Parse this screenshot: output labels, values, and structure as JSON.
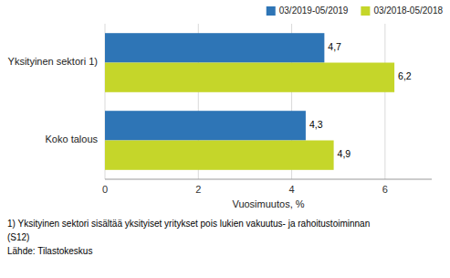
{
  "chart_data": {
    "type": "bar",
    "orientation": "horizontal",
    "categories": [
      "Koko talous",
      "Yksityinen sektori 1)"
    ],
    "series": [
      {
        "name": "03/2019-05/2019",
        "color": "#2E75B6",
        "values": [
          4.3,
          4.7
        ],
        "value_labels": [
          "4,3",
          "4,7"
        ]
      },
      {
        "name": "03/2018-05/2018",
        "color": "#C5D62A",
        "values": [
          4.9,
          6.2
        ],
        "value_labels": [
          "4,9",
          "6,2"
        ]
      }
    ],
    "xlabel": "Vuosimuutos, %",
    "xlim": [
      0,
      7
    ],
    "xticks": [
      0,
      2,
      4,
      6
    ],
    "grid": true,
    "legend": "upper right",
    "data_labels": true,
    "annotations": [
      "1) Yksityinen sektori sisältää yksityiset yritykset pois lukien vakuutus- ja rahoitustoiminnan",
      "(S12)",
      "Lähde: Tilastokeskus"
    ]
  }
}
